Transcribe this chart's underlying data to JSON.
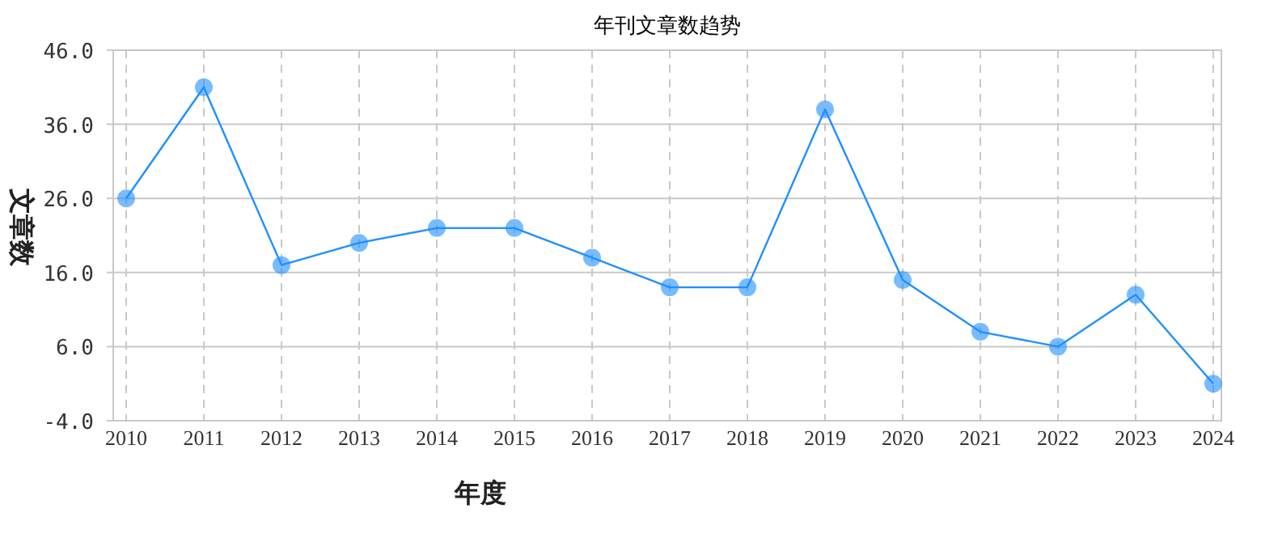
{
  "chart_data": {
    "type": "line",
    "title": "年刊文章数趋势",
    "xlabel": "年度",
    "ylabel": "文章数",
    "categories": [
      "2010",
      "2011",
      "2012",
      "2013",
      "2014",
      "2015",
      "2016",
      "2017",
      "2018",
      "2019",
      "2020",
      "2021",
      "2022",
      "2023",
      "2024"
    ],
    "series": [
      {
        "color": "#1e90ff",
        "values": [
          26,
          41,
          17,
          20,
          22,
          22,
          18,
          14,
          14,
          38,
          15,
          8,
          6,
          13,
          1
        ]
      }
    ],
    "ylim": [
      -4,
      46
    ],
    "yticks": [
      {
        "value": -4,
        "label": "-4.0"
      },
      {
        "value": 6,
        "label": "6.0"
      },
      {
        "value": 16,
        "label": "16.0"
      },
      {
        "value": 26,
        "label": "26.0"
      },
      {
        "value": 36,
        "label": "36.0"
      },
      {
        "value": 46,
        "label": "46.0"
      }
    ],
    "grid": true,
    "marker": "circle",
    "line_style": "solid"
  }
}
